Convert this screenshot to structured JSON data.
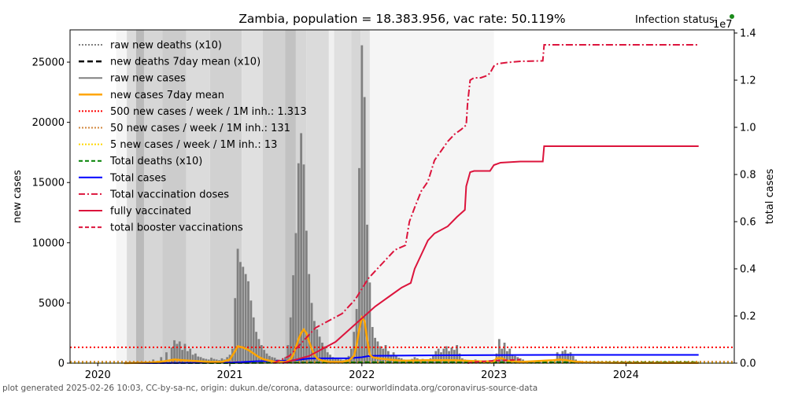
{
  "chart_data": {
    "type": "bar",
    "title": "Zambia, population = 18.383.956, vac rate: 50.119%",
    "status_label": "Infection status:",
    "status_color": "#1a8a1a",
    "right_axis_offset_label": "1e7",
    "xlabel": "",
    "ylabel": "new cases",
    "ylabel_right": "total cases",
    "footer": "plot generated 2025-02-26 10:03, CC-by-sa-nc, origin: dukun.de/corona, datasource: ourworldindata.org/coronavirus-source-data",
    "xlim": [
      2019.79,
      2024.82
    ],
    "ylim": [
      0,
      27680
    ],
    "ylim_right": [
      0,
      14000000
    ],
    "x_ticks": [
      {
        "value": 2020,
        "label": "2020"
      },
      {
        "value": 2021,
        "label": "2021"
      },
      {
        "value": 2022,
        "label": "2022"
      },
      {
        "value": 2023,
        "label": "2023"
      },
      {
        "value": 2024,
        "label": "2024"
      }
    ],
    "y_ticks": [
      {
        "value": 0,
        "label": "0"
      },
      {
        "value": 5000,
        "label": "5000"
      },
      {
        "value": 10000,
        "label": "10000"
      },
      {
        "value": 15000,
        "label": "15000"
      },
      {
        "value": 20000,
        "label": "20000"
      },
      {
        "value": 25000,
        "label": "25000"
      }
    ],
    "y_ticks_right": [
      {
        "value": 0,
        "label": "0.0"
      },
      {
        "value": 2000000,
        "label": "0.2"
      },
      {
        "value": 4000000,
        "label": "0.4"
      },
      {
        "value": 6000000,
        "label": "0.6"
      },
      {
        "value": 8000000,
        "label": "0.8"
      },
      {
        "value": 10000000,
        "label": "1.0"
      },
      {
        "value": 12000000,
        "label": "1.2"
      },
      {
        "value": 14000000,
        "label": "1.4"
      }
    ],
    "legend": {
      "placement": "top-left",
      "entries": [
        {
          "label": "raw new deaths (x10)",
          "color": "#808080",
          "style": "dotted"
        },
        {
          "label": "new deaths 7day mean (x10)",
          "color": "#000000",
          "style": "dashed-bold"
        },
        {
          "label": "raw new cases",
          "color": "#808080",
          "style": "solid"
        },
        {
          "label": "new cases 7day mean",
          "color": "#ffa500",
          "style": "solid-bold"
        },
        {
          "label": "500 new cases / week / 1M inh.: 1.313",
          "color": "#ff0000",
          "style": "dotted"
        },
        {
          "label": "50 new cases / week / 1M inh.: 131",
          "color": "#d2873c",
          "style": "dotted"
        },
        {
          "label": "5 new cases / week / 1M inh.: 13",
          "color": "#ffd700",
          "style": "dotted"
        },
        {
          "label": "Total deaths (x10)",
          "color": "#008000",
          "style": "dashed"
        },
        {
          "label": "Total cases",
          "color": "#0000ff",
          "style": "solid"
        },
        {
          "label": "Total vaccination doses",
          "color": "#dc143c",
          "style": "dashdot"
        },
        {
          "label": "fully vaccinated",
          "color": "#dc143c",
          "style": "solid"
        },
        {
          "label": "total booster vaccinations",
          "color": "#dc143c",
          "style": "dashed"
        }
      ]
    },
    "threshold_lines": [
      {
        "name": "500 per week per 1M",
        "value": 1313,
        "color": "#ff0000"
      },
      {
        "name": "50 per week per 1M",
        "value": 131,
        "color": "#d2873c"
      },
      {
        "name": "5 per week per 1M",
        "value": 13,
        "color": "#ffd700"
      }
    ],
    "background_bands": [
      {
        "x0": 2020.14,
        "x1": 2020.22,
        "shade": 0.96
      },
      {
        "x0": 2020.22,
        "x1": 2020.29,
        "shade": 0.86
      },
      {
        "x0": 2020.29,
        "x1": 2020.35,
        "shade": 0.73
      },
      {
        "x0": 2020.35,
        "x1": 2020.49,
        "shade": 0.84
      },
      {
        "x0": 2020.49,
        "x1": 2020.67,
        "shade": 0.8
      },
      {
        "x0": 2020.67,
        "x1": 2020.85,
        "shade": 0.86
      },
      {
        "x0": 2020.85,
        "x1": 2021.09,
        "shade": 0.82
      },
      {
        "x0": 2021.09,
        "x1": 2021.25,
        "shade": 0.88
      },
      {
        "x0": 2021.25,
        "x1": 2021.42,
        "shade": 0.82
      },
      {
        "x0": 2021.42,
        "x1": 2021.5,
        "shade": 0.76
      },
      {
        "x0": 2021.5,
        "x1": 2021.58,
        "shade": 0.84
      },
      {
        "x0": 2021.58,
        "x1": 2021.75,
        "shade": 0.86
      },
      {
        "x0": 2021.75,
        "x1": 2021.79,
        "shade": 0.94
      },
      {
        "x0": 2021.79,
        "x1": 2021.92,
        "shade": 0.88
      },
      {
        "x0": 2021.92,
        "x1": 2021.99,
        "shade": 0.84
      },
      {
        "x0": 2021.99,
        "x1": 2022.06,
        "shade": 0.88
      },
      {
        "x0": 2022.06,
        "x1": 2023.0,
        "shade": 0.96
      }
    ],
    "series_new_cases": {
      "name": "raw new cases",
      "x": [
        2020.25,
        2020.3,
        2020.36,
        2020.42,
        2020.48,
        2020.52,
        2020.56,
        2020.58,
        2020.6,
        2020.62,
        2020.64,
        2020.66,
        2020.68,
        2020.7,
        2020.72,
        2020.74,
        2020.76,
        2020.78,
        2020.8,
        2020.82,
        2020.84,
        2020.86,
        2020.88,
        2020.9,
        2020.92,
        2020.94,
        2020.96,
        2020.98,
        2021.0,
        2021.02,
        2021.04,
        2021.06,
        2021.08,
        2021.1,
        2021.12,
        2021.14,
        2021.16,
        2021.18,
        2021.2,
        2021.22,
        2021.24,
        2021.26,
        2021.28,
        2021.3,
        2021.32,
        2021.34,
        2021.36,
        2021.38,
        2021.4,
        2021.42,
        2021.44,
        2021.46,
        2021.48,
        2021.5,
        2021.52,
        2021.54,
        2021.56,
        2021.58,
        2021.6,
        2021.62,
        2021.64,
        2021.66,
        2021.68,
        2021.7,
        2021.72,
        2021.74,
        2021.76,
        2021.78,
        2021.8,
        2021.82,
        2021.84,
        2021.86,
        2021.88,
        2021.9,
        2021.92,
        2021.94,
        2021.96,
        2021.98,
        2022.0,
        2022.02,
        2022.04,
        2022.06,
        2022.08,
        2022.1,
        2022.12,
        2022.14,
        2022.16,
        2022.18,
        2022.2,
        2022.22,
        2022.24,
        2022.26,
        2022.28,
        2022.3,
        2022.32,
        2022.34,
        2022.36,
        2022.38,
        2022.4,
        2022.42,
        2022.44,
        2022.46,
        2022.48,
        2022.5,
        2022.52,
        2022.54,
        2022.56,
        2022.58,
        2022.6,
        2022.62,
        2022.64,
        2022.66,
        2022.68,
        2022.7,
        2022.72,
        2022.74,
        2022.76,
        2022.78,
        2022.8,
        2022.82,
        2022.84,
        2022.86,
        2022.88,
        2022.9,
        2022.92,
        2022.94,
        2022.96,
        2022.98,
        2023.0,
        2023.02,
        2023.04,
        2023.06,
        2023.08,
        2023.1,
        2023.12,
        2023.14,
        2023.16,
        2023.18,
        2023.2,
        2023.22,
        2023.24,
        2023.26,
        2023.3,
        2023.35,
        2023.4,
        2023.45,
        2023.48,
        2023.5,
        2023.52,
        2023.54,
        2023.56,
        2023.58,
        2023.6,
        2023.62,
        2023.65,
        2023.7,
        2023.75,
        2023.8,
        2023.85,
        2023.9,
        2023.95,
        2024.0,
        2024.05,
        2024.1,
        2024.15,
        2024.2,
        2024.25,
        2024.3,
        2024.35,
        2024.4,
        2024.45,
        2024.5,
        2024.55
      ],
      "values": [
        100,
        150,
        80,
        300,
        500,
        900,
        1300,
        1900,
        1600,
        1800,
        1100,
        1600,
        1000,
        1200,
        700,
        800,
        550,
        500,
        400,
        350,
        300,
        450,
        350,
        300,
        250,
        400,
        300,
        500,
        700,
        1200,
        5400,
        9500,
        8400,
        8000,
        7400,
        6800,
        5200,
        3800,
        2600,
        2000,
        1500,
        1100,
        800,
        600,
        500,
        450,
        300,
        250,
        300,
        500,
        1500,
        3800,
        7300,
        10800,
        16600,
        19100,
        16500,
        11000,
        7400,
        5000,
        3500,
        2800,
        2200,
        1700,
        1400,
        900,
        700,
        500,
        400,
        350,
        300,
        250,
        400,
        600,
        1200,
        2600,
        4500,
        16200,
        26400,
        22100,
        11500,
        6700,
        3000,
        2100,
        1800,
        1400,
        1200,
        1500,
        1000,
        700,
        900,
        600,
        450,
        400,
        300,
        250,
        250,
        350,
        500,
        400,
        300,
        350,
        250,
        300,
        400,
        600,
        1000,
        1200,
        900,
        1200,
        1400,
        1000,
        1300,
        1100,
        1500,
        800,
        400,
        300,
        200,
        150,
        200,
        300,
        150,
        100,
        150,
        100,
        150,
        200,
        300,
        800,
        2000,
        1200,
        1700,
        1000,
        1200,
        700,
        600,
        500,
        400,
        300,
        200,
        200,
        150,
        100,
        150,
        100,
        900,
        700,
        1000,
        1100,
        800,
        900,
        600,
        300,
        200,
        100,
        80,
        60,
        50,
        40,
        40,
        30,
        30,
        20,
        20,
        20,
        20,
        20,
        15,
        15,
        10,
        10
      ]
    },
    "series_new_cases_7day_mean": {
      "name": "new cases 7day mean",
      "x": [
        2020.2,
        2020.4,
        2020.5,
        2020.58,
        2020.64,
        2020.7,
        2020.78,
        2020.86,
        2020.94,
        2021.0,
        2021.04,
        2021.06,
        2021.1,
        2021.14,
        2021.18,
        2021.22,
        2021.26,
        2021.3,
        2021.36,
        2021.42,
        2021.46,
        2021.48,
        2021.5,
        2021.52,
        2021.54,
        2021.56,
        2021.58,
        2021.6,
        2021.62,
        2021.64,
        2021.66,
        2021.7,
        2021.76,
        2021.84,
        2021.9,
        2021.94,
        2021.96,
        2021.98,
        2022.0,
        2022.02,
        2022.04,
        2022.06,
        2022.08,
        2022.12,
        2022.2,
        2022.3,
        2022.5,
        2022.7,
        2022.9,
        2023.0,
        2023.02,
        2023.06,
        2023.1,
        2023.2,
        2023.45,
        2023.5,
        2023.55,
        2023.6,
        2023.7,
        2024.0,
        2024.55
      ],
      "values": [
        0,
        50,
        150,
        300,
        250,
        200,
        150,
        100,
        100,
        300,
        1000,
        1400,
        1300,
        1100,
        800,
        500,
        300,
        200,
        100,
        100,
        300,
        700,
        1300,
        2000,
        2500,
        2800,
        2500,
        1800,
        1200,
        700,
        400,
        200,
        100,
        100,
        200,
        600,
        1500,
        2800,
        3800,
        3500,
        2000,
        700,
        500,
        400,
        300,
        200,
        250,
        250,
        150,
        150,
        400,
        400,
        200,
        100,
        250,
        300,
        250,
        150,
        50,
        20,
        10
      ]
    },
    "series_total_cases": {
      "name": "Total cases",
      "x": [
        2020.2,
        2020.5,
        2020.8,
        2021.0,
        2021.1,
        2021.2,
        2021.4,
        2021.5,
        2021.6,
        2021.7,
        2021.9,
        2022.0,
        2022.05,
        2022.1,
        2022.3,
        2022.5,
        2022.8,
        2023.0,
        2023.2,
        2023.5,
        2024.0,
        2024.55
      ],
      "values": [
        0,
        5000,
        15000,
        20000,
        50000,
        80000,
        95000,
        130000,
        195000,
        205000,
        210000,
        250000,
        300000,
        312000,
        320000,
        330000,
        335000,
        340000,
        345000,
        349000,
        349500,
        350000
      ]
    },
    "series_total_deaths_x10": {
      "name": "Total deaths (x10)",
      "x": [
        2020.2,
        2021.0,
        2021.5,
        2022.0,
        2024.55
      ],
      "values": [
        0,
        1000,
        20000,
        35000,
        41000
      ]
    },
    "series_total_vaccination_doses": {
      "name": "Total vaccination doses",
      "x": [
        2021.33,
        2021.45,
        2021.55,
        2021.65,
        2021.75,
        2021.85,
        2021.95,
        2022.05,
        2022.15,
        2022.25,
        2022.33,
        2022.36,
        2022.4,
        2022.45,
        2022.5,
        2022.55,
        2022.6,
        2022.65,
        2022.7,
        2022.75,
        2022.79,
        2022.8,
        2022.82,
        2022.85,
        2022.9,
        2022.95,
        2022.97,
        2023.0,
        2023.03,
        2023.1,
        2023.2,
        2023.37,
        2023.38,
        2024.55
      ],
      "values": [
        0,
        300000,
        900000,
        1500000,
        1800000,
        2100000,
        2700000,
        3600000,
        4200000,
        4800000,
        5000000,
        6000000,
        6600000,
        7300000,
        7700000,
        8600000,
        9000000,
        9400000,
        9700000,
        9900000,
        10100000,
        11000000,
        12000000,
        12100000,
        12100000,
        12200000,
        12300000,
        12600000,
        12700000,
        12750000,
        12800000,
        12820000,
        13500000,
        13500000
      ]
    },
    "series_fully_vaccinated": {
      "name": "fully vaccinated",
      "x": [
        2021.4,
        2021.6,
        2021.8,
        2022.0,
        2022.1,
        2022.2,
        2022.3,
        2022.37,
        2022.4,
        2022.45,
        2022.5,
        2022.55,
        2022.65,
        2022.72,
        2022.78,
        2022.79,
        2022.82,
        2022.85,
        2022.97,
        2023.0,
        2023.05,
        2023.2,
        2023.37,
        2023.38,
        2024.55
      ],
      "values": [
        0,
        300000,
        900000,
        1900000,
        2400000,
        2800000,
        3200000,
        3400000,
        4000000,
        4600000,
        5200000,
        5500000,
        5800000,
        6200000,
        6500000,
        7500000,
        8100000,
        8150000,
        8150000,
        8400000,
        8500000,
        8550000,
        8550000,
        9200000,
        9200000
      ]
    },
    "series_booster": {
      "name": "total booster vaccinations",
      "x": [
        2022.8,
        2022.85,
        2023.0,
        2023.2
      ],
      "values": [
        0,
        50000,
        100000,
        150000
      ]
    }
  }
}
